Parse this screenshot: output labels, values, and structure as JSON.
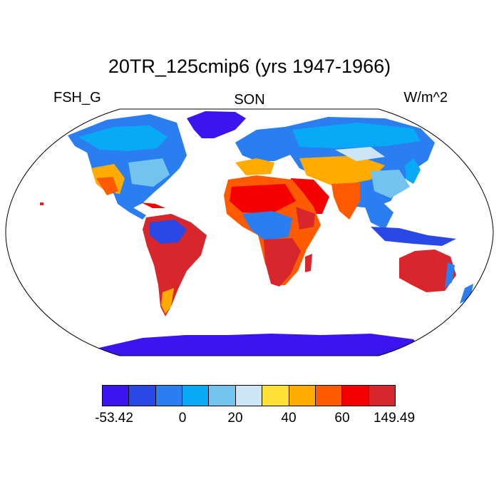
{
  "title": "20TR_125cmip6 (yrs 1947-1966)",
  "variable": "FSH_G",
  "season": "SON",
  "units": "W/m^2",
  "colorbar": {
    "colors": [
      "#3b14f0",
      "#2a48e6",
      "#2a7ef0",
      "#08aaf5",
      "#72c4ee",
      "#cde6f7",
      "#ffe036",
      "#ffab00",
      "#ff5a00",
      "#f50000",
      "#d7262c"
    ],
    "tick_labels": [
      "-53.42",
      "0",
      "20",
      "40",
      "60",
      "149.49"
    ]
  },
  "map": {
    "projection": "Robinson",
    "color_scale": {
      "Antarctica": "#3b14f0",
      "Greenland": "#3b14f0",
      "Australia": "#d7262c",
      "Africa south": "#d7262c",
      "Sahara": "#ff5a00",
      "Amazon": "#2a48e6",
      "Boreal": "#2a7ef0"
    }
  }
}
